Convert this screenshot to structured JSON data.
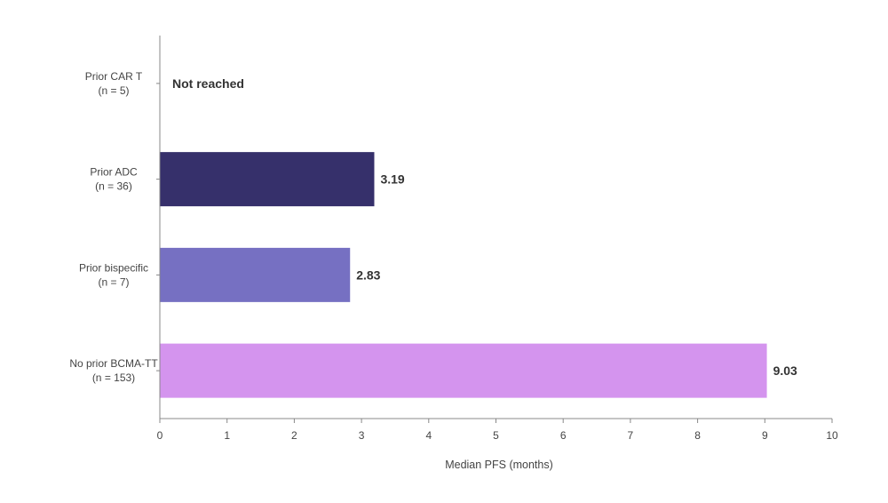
{
  "chart_data": {
    "type": "bar",
    "orientation": "horizontal",
    "title": "",
    "xlabel": "Median PFS (months)",
    "ylabel": "",
    "xlim": [
      0,
      10
    ],
    "xticks": [
      0,
      1,
      2,
      3,
      4,
      5,
      6,
      7,
      8,
      9,
      10
    ],
    "grid": false,
    "categories": [
      {
        "name": "Prior CAR T",
        "n": "(n = 5)",
        "value": null,
        "label": "Not reached",
        "color": null
      },
      {
        "name": "Prior ADC",
        "n": "(n = 36)",
        "value": 3.19,
        "label": "3.19",
        "color": "#36306b"
      },
      {
        "name": "Prior bispecific",
        "n": "(n = 7)",
        "value": 2.83,
        "label": "2.83",
        "color": "#7670c2"
      },
      {
        "name": "No prior BCMA-TT",
        "n": "(n = 153)",
        "value": 9.03,
        "label": "9.03",
        "color": "#d494ee"
      }
    ],
    "axis_color": "#888888",
    "text_color": "#444444",
    "label_color": "#333333"
  }
}
